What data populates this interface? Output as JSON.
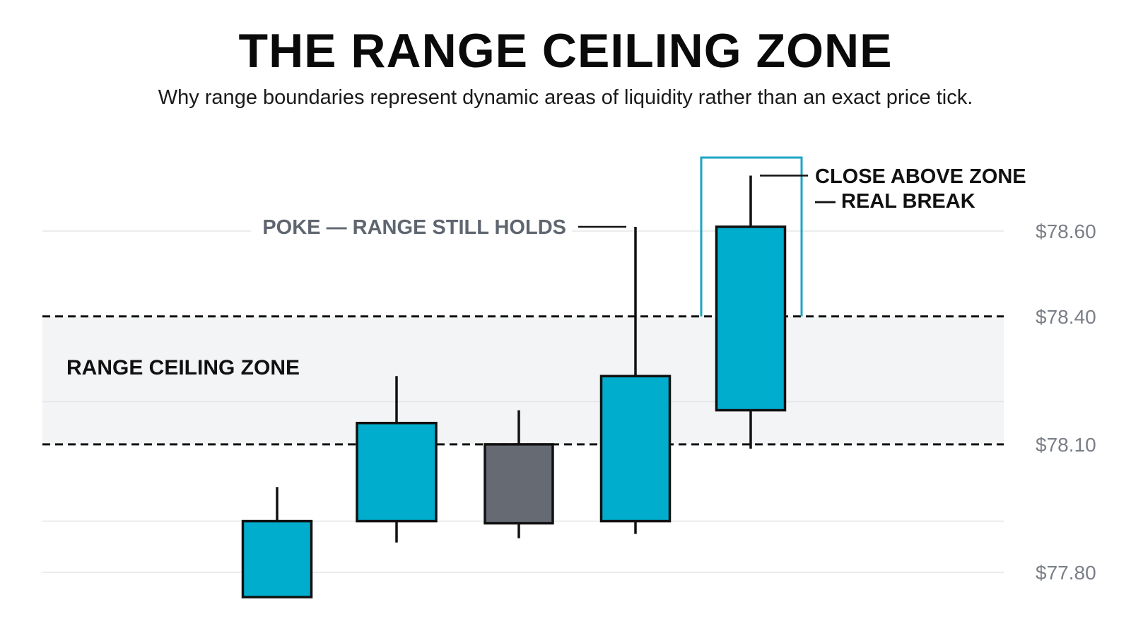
{
  "header": {
    "title": "THE RANGE CEILING ZONE",
    "subtitle": "Why range boundaries represent dynamic areas of liquidity rather than an exact price tick."
  },
  "colors": {
    "bull": "#00adcc",
    "neutral": "#656a73",
    "outline": "#111111",
    "zone_fill": "#f3f4f6",
    "grid": "#e3e5e8",
    "bracket": "#1aa6c4",
    "muted_text": "#5f6670",
    "axis_text": "#7a7f86"
  },
  "chart_data": {
    "type": "candlestick",
    "title": "THE RANGE CEILING ZONE",
    "y_tick_labels": [
      "$78.60",
      "$78.40",
      "$78.10",
      "$77.80"
    ],
    "y_ticks": [
      78.6,
      78.4,
      78.1,
      77.8
    ],
    "grid_levels": [
      78.6,
      78.4,
      78.2,
      78.1,
      77.92,
      77.8
    ],
    "ylim": [
      77.75,
      78.75
    ],
    "grid": true,
    "zone": {
      "low": 78.1,
      "high": 78.4,
      "label": "RANGE CEILING ZONE"
    },
    "candles": [
      {
        "open": 77.92,
        "close": 77.74,
        "high": 78.0,
        "low": 77.74,
        "color": "bull"
      },
      {
        "open": 77.92,
        "close": 78.15,
        "high": 78.26,
        "low": 77.87,
        "color": "bull"
      },
      {
        "open": 78.1,
        "close": 77.915,
        "high": 78.18,
        "low": 77.88,
        "color": "neutral"
      },
      {
        "open": 77.92,
        "close": 78.26,
        "high": 78.61,
        "low": 77.89,
        "color": "bull"
      },
      {
        "open": 78.18,
        "close": 78.61,
        "high": 78.73,
        "low": 78.09,
        "color": "bull"
      }
    ],
    "annotations": {
      "poke": "POKE — RANGE STILL HOLDS",
      "break_line1": "CLOSE ABOVE ZONE",
      "break_line2": "— REAL BREAK"
    }
  }
}
